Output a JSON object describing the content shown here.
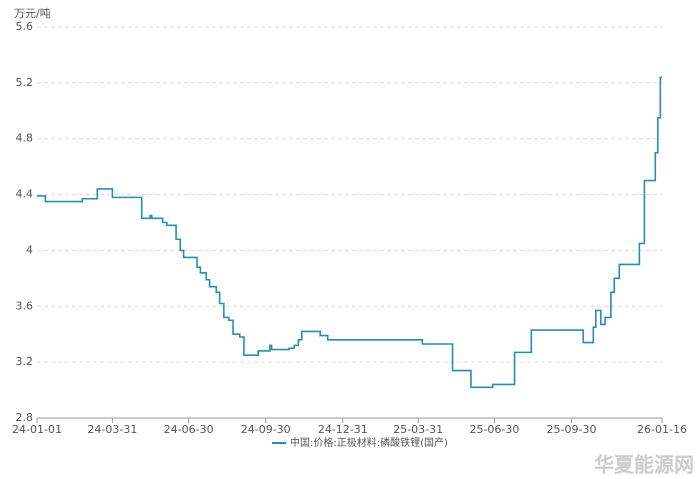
{
  "chart_data": {
    "type": "line",
    "step": true,
    "y_label": "万元/吨",
    "x": [
      "24-01-01",
      "24-01-11",
      "24-02-24",
      "24-03-13",
      "24-03-31",
      "24-05-05",
      "24-05-15",
      "24-05-17",
      "24-05-30",
      "24-06-04",
      "24-06-15",
      "24-06-20",
      "24-06-24",
      "24-07-10",
      "24-07-14",
      "24-07-21",
      "24-07-25",
      "24-08-02",
      "24-08-06",
      "24-08-11",
      "24-08-17",
      "24-08-22",
      "24-08-30",
      "24-09-04",
      "24-09-21",
      "24-10-05",
      "24-10-07",
      "24-10-28",
      "24-11-03",
      "24-11-08",
      "24-11-12",
      "24-12-04",
      "24-12-13",
      "25-04-05",
      "25-05-11",
      "25-06-02",
      "25-06-28",
      "25-07-24",
      "25-08-13",
      "25-10-14",
      "25-10-26",
      "25-10-29",
      "25-11-04",
      "25-11-09",
      "25-11-16",
      "25-11-20",
      "25-11-26",
      "25-12-20",
      "25-12-26",
      "26-01-08",
      "26-01-11",
      "26-01-14",
      "26-01-16"
    ],
    "series": [
      {
        "name": "中国:价格:正极材料:磷酸铁锂(国产)",
        "color": "#2b8cb3",
        "values": [
          4.39,
          4.35,
          4.37,
          4.44,
          4.38,
          4.23,
          4.25,
          4.23,
          4.2,
          4.18,
          4.08,
          4.0,
          3.95,
          3.88,
          3.84,
          3.79,
          3.74,
          3.7,
          3.62,
          3.52,
          3.5,
          3.4,
          3.38,
          3.25,
          3.28,
          3.32,
          3.29,
          3.3,
          3.32,
          3.36,
          3.42,
          3.39,
          3.36,
          3.33,
          3.14,
          3.02,
          3.04,
          3.27,
          3.43,
          3.34,
          3.45,
          3.57,
          3.47,
          3.52,
          3.7,
          3.8,
          3.9,
          4.05,
          4.5,
          4.7,
          4.95,
          5.24,
          5.24
        ]
      }
    ],
    "xlim": [
      "24-01-01",
      "26-01-16"
    ],
    "xticks": [
      "24-01-01",
      "24-03-31",
      "24-06-30",
      "24-09-30",
      "24-12-31",
      "25-03-31",
      "25-06-30",
      "25-09-30",
      "26-01-16"
    ],
    "ylim": [
      2.8,
      5.6
    ],
    "yticks": [
      2.8,
      3.2,
      3.6,
      4,
      4.4,
      4.8,
      5.2,
      5.6
    ],
    "grid": true,
    "legend": "bottom",
    "watermark": "华夏能源网"
  }
}
